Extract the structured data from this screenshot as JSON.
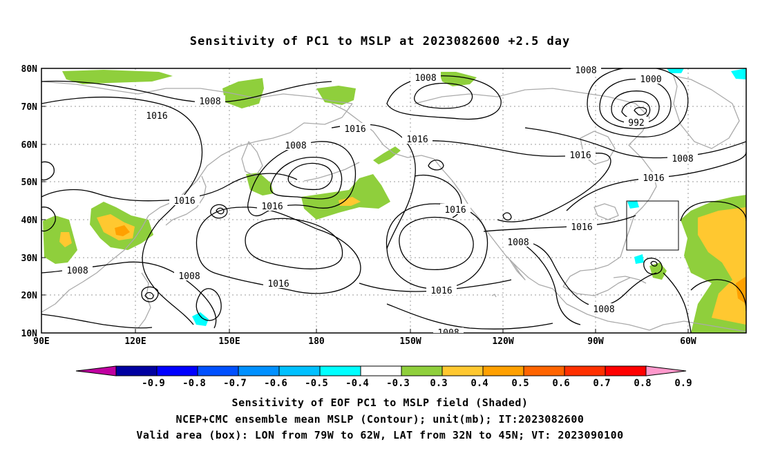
{
  "title": "Sensitivity of PC1 to MSLP at 2023082600 +2.5 day",
  "axes": {
    "lat_ticks": [
      "80N",
      "70N",
      "60N",
      "50N",
      "40N",
      "30N",
      "20N",
      "10N"
    ],
    "lon_ticks": [
      "90E",
      "120E",
      "150E",
      "180",
      "150W",
      "120W",
      "90W",
      "60W"
    ]
  },
  "contour_labels": {
    "l1008_a": "1008",
    "l1008_b": "1008",
    "l1008_c": "1008",
    "l1008_d": "1008",
    "l1008_e": "1008",
    "l1008_f": "1008",
    "l1008_g": "1008",
    "l1008_h": "1008",
    "l1008_i": "1008",
    "l1008_j": "1008",
    "l1016_a": "1016",
    "l1016_b": "1016",
    "l1016_c": "1016",
    "l1016_d": "1016",
    "l1016_e": "1016",
    "l1016_f": "1016",
    "l1016_g": "1016",
    "l1016_h": "1016",
    "l1016_i": "1016",
    "l1016_j": "1016",
    "l1000": "1000",
    "l992": "992"
  },
  "colorbar": {
    "labels": [
      "-0.9",
      "-0.8",
      "-0.7",
      "-0.6",
      "-0.5",
      "-0.4",
      "-0.3",
      "0.3",
      "0.4",
      "0.5",
      "0.6",
      "0.7",
      "0.8",
      "0.9"
    ],
    "colors": [
      "#0000a0",
      "#0000ff",
      "#0050ff",
      "#0090ff",
      "#00c0ff",
      "#00ffff",
      "#ffffff",
      "#8fcf3c",
      "#ffc830",
      "#ffa000",
      "#ff6400",
      "#ff3000",
      "#ff0000"
    ],
    "low_end_color": "#c000a0",
    "high_end_color": "#ff99cc"
  },
  "colors": {
    "land": "#aaaaaa",
    "contour": "#000000",
    "shade_green": "#8fcf3c",
    "shade_yellow": "#ffc830",
    "shade_orange": "#ffa000",
    "shade_cyan": "#00ffff"
  },
  "captions": {
    "line1": "Sensitivity of EOF PC1 to MSLP field (Shaded)",
    "line2": "NCEP+CMC ensemble mean MSLP (Contour); unit(mb); IT:2023082600",
    "line3": "Valid area (box): LON from 79W to 62W, LAT from 32N to 45N; VT: 2023090100"
  },
  "valid_area": {
    "lon_from": "79W",
    "lon_to": "62W",
    "lat_from": "32N",
    "lat_to": "45N"
  }
}
